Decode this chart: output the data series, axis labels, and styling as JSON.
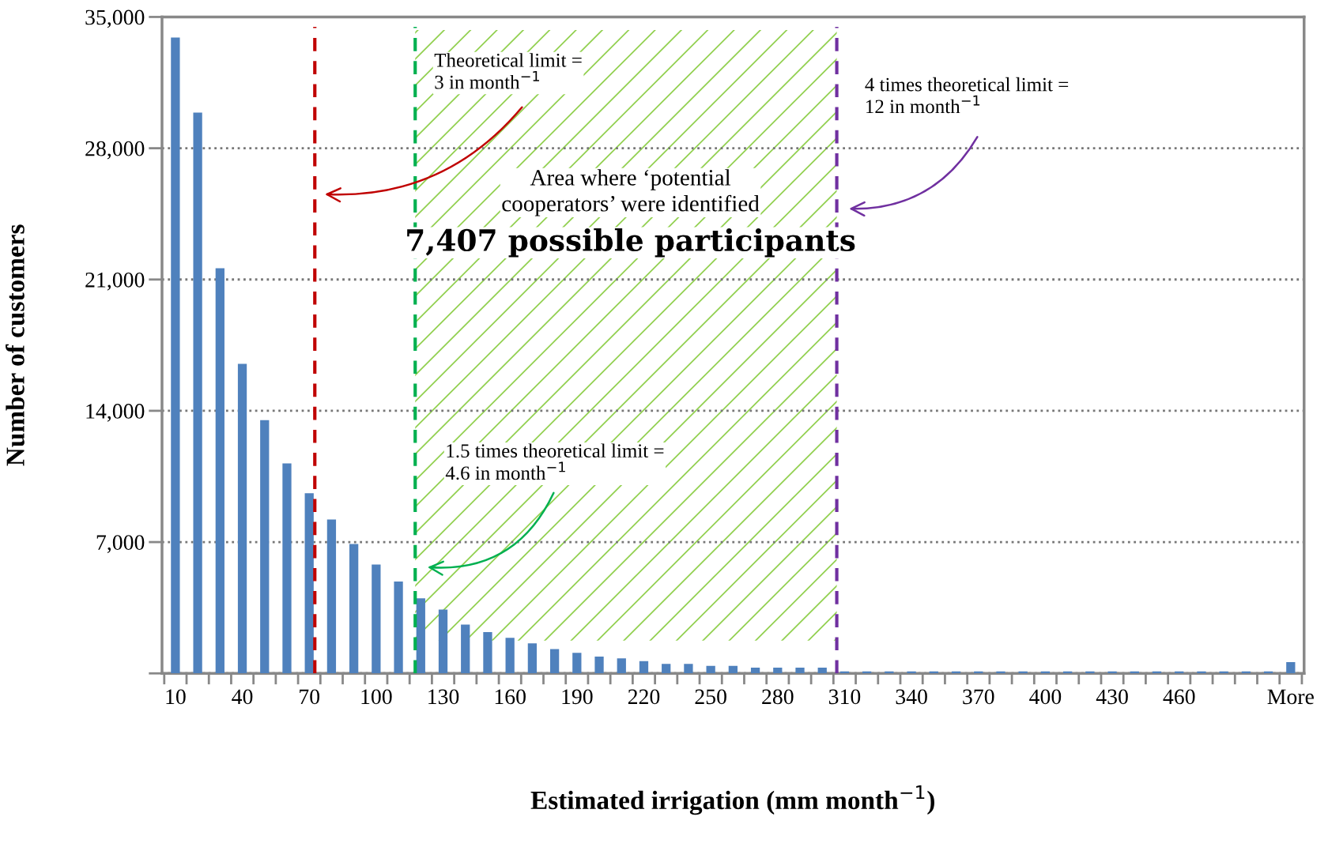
{
  "chart_data": {
    "type": "bar",
    "xlabel": "Estimated irrigation (mm month$^{−1}$)",
    "ylabel": "Number of customers",
    "categories": [
      "10",
      null,
      null,
      "40",
      null,
      null,
      "70",
      null,
      null,
      "100",
      null,
      null,
      "130",
      null,
      null,
      "160",
      null,
      null,
      "190",
      null,
      null,
      "220",
      null,
      null,
      "250",
      null,
      null,
      "280",
      null,
      null,
      "310",
      null,
      null,
      "340",
      null,
      null,
      "370",
      null,
      null,
      "400",
      null,
      null,
      "430",
      null,
      null,
      "460",
      null,
      null,
      null,
      null,
      "More"
    ],
    "values": [
      33900,
      29900,
      21600,
      16500,
      13500,
      11200,
      9600,
      8200,
      6900,
      5800,
      4900,
      4000,
      3400,
      2600,
      2200,
      1900,
      1600,
      1300,
      1100,
      900,
      800,
      650,
      500,
      500,
      400,
      400,
      300,
      300,
      300,
      300,
      100,
      100,
      100,
      100,
      100,
      100,
      100,
      100,
      100,
      100,
      100,
      100,
      100,
      100,
      100,
      100,
      100,
      100,
      100,
      100,
      600
    ],
    "color": "#4f81bd",
    "ylim": [
      0,
      35000
    ],
    "yticks": [
      {
        "value": 0,
        "label": null
      },
      {
        "value": 7000,
        "label": "7,000"
      },
      {
        "value": 14000,
        "label": "14,000"
      },
      {
        "value": 21000,
        "label": "21,000"
      },
      {
        "value": 28000,
        "label": "28,000"
      },
      {
        "value": 35000,
        "label": "35,000"
      }
    ],
    "grid": "y",
    "annotations": [
      "Theoretical limit =\n3 in month$^{−1}$",
      "1.5 times theoretical limit =\n4.6 in month$^{−1}$",
      "4 times theoretical limit =\n12 in month$^{−1}$",
      "Area where ‘potential\ncooperators’ were identified",
      "7,407 possible participants"
    ]
  }
}
